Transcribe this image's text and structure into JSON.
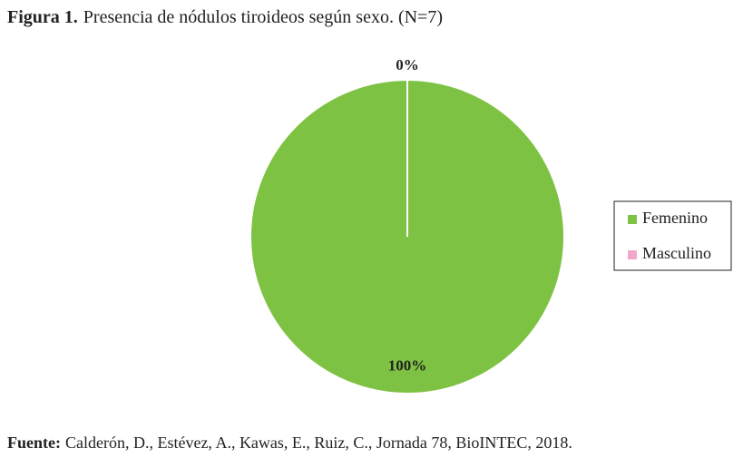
{
  "chart_data": {
    "type": "pie",
    "title_label": "Figura 1.",
    "title": "Presencia de nódulos tiroideos según sexo. (N=7)",
    "categories": [
      "Femenino",
      "Masculino"
    ],
    "values": [
      100,
      0
    ],
    "value_labels": [
      "100%",
      "0%"
    ],
    "colors": [
      "#7dc242",
      "#f2a7c9"
    ],
    "legend": "right",
    "source_label": "Fuente:",
    "source": "Calderón, D., Estévez, A., Kawas, E., Ruiz, C., Jornada 78, BioINTEC, 2018."
  }
}
